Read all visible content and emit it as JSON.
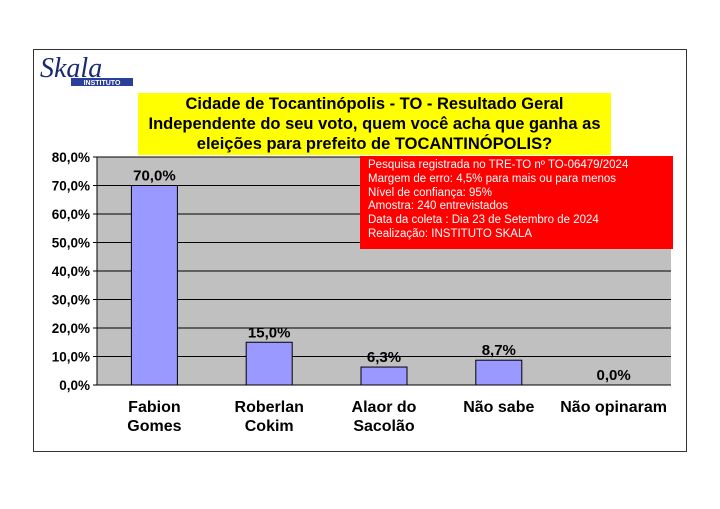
{
  "logo": {
    "brand": "Skala",
    "sub": "INSTITUTO"
  },
  "title_lines": [
    "Cidade de Tocantinópolis - TO - Resultado Geral",
    "Independente do seu voto, quem você acha que ganha as",
    "eleições para prefeito de TOCANTINÓPOLIS?"
  ],
  "info_lines": [
    "Pesquisa registrada no TRE-TO nº TO-06479/2024",
    "Margem de erro: 4,5% para mais ou para menos",
    "Nível de confiança: 95%",
    "Amostra: 240 entrevistados",
    "Data da coleta : Dia 23 de Setembro de 2024",
    "Realização: INSTITUTO SKALA"
  ],
  "colors": {
    "bar": "#9999ff",
    "plot_bg": "#c0c0c0",
    "title_bg": "#ffff00",
    "info_bg": "#ff0000"
  },
  "chart_data": {
    "type": "bar",
    "categories": [
      [
        "Fabion",
        "Gomes"
      ],
      [
        "Roberlan",
        "Cokim"
      ],
      [
        "Alaor do",
        "Sacolão"
      ],
      [
        "Não sabe"
      ],
      [
        "Não opinaram"
      ]
    ],
    "values": [
      70.0,
      15.0,
      6.3,
      8.7,
      0.0
    ],
    "value_labels": [
      "70,0%",
      "15,0%",
      "6,3%",
      "8,7%",
      "0,0%"
    ],
    "ylim": [
      0,
      80
    ],
    "yticks": [
      0,
      10,
      20,
      30,
      40,
      50,
      60,
      70,
      80
    ],
    "ytick_labels": [
      "0,0%",
      "10,0%",
      "20,0%",
      "30,0%",
      "40,0%",
      "50,0%",
      "60,0%",
      "70,0%",
      "80,0%"
    ],
    "grid": true
  }
}
